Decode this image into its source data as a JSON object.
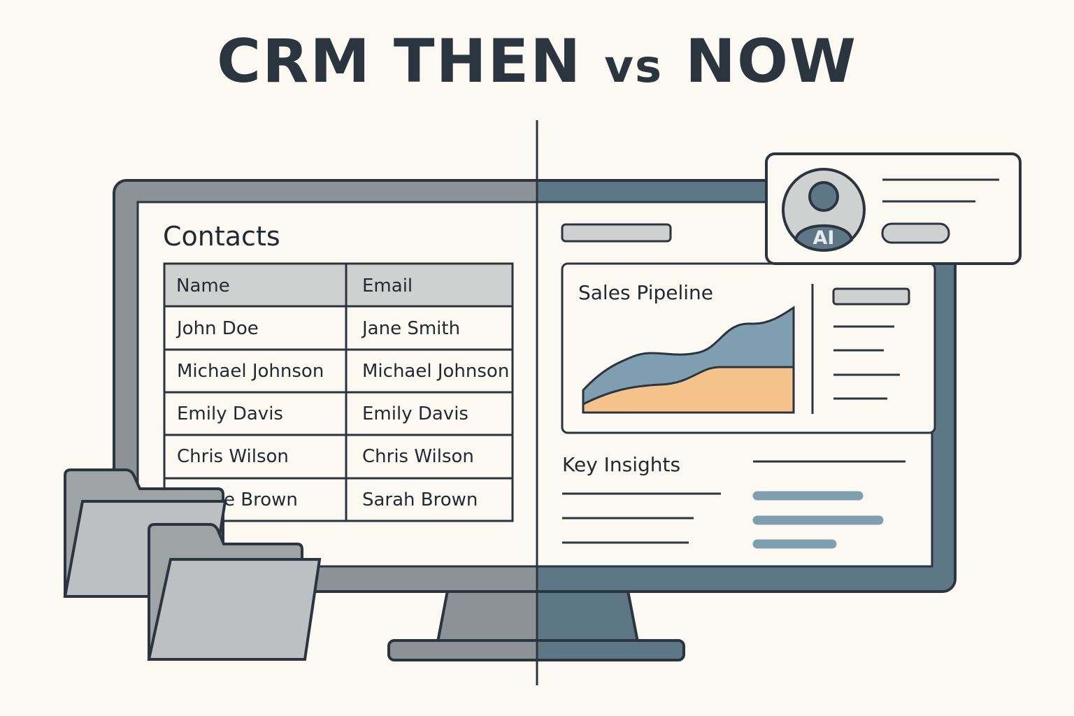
{
  "title": {
    "left": "CRM THEN",
    "vs": "vs",
    "right": "NOW"
  },
  "then": {
    "heading": "Contacts",
    "columns": [
      "Name",
      "Email"
    ],
    "rows": [
      [
        "John Doe",
        "Jane Smith"
      ],
      [
        "Michael Johnson",
        "Michael Johnson"
      ],
      [
        "Emily Davis",
        "Emily Davis"
      ],
      [
        "Chris Wilson",
        "Chris Wilson"
      ],
      [
        "e Brown",
        "Sarah Brown"
      ]
    ]
  },
  "now": {
    "chart_heading": "Sales Pipeline",
    "insights_heading": "Key Insights",
    "ai_label": "AI"
  },
  "colors": {
    "background": "#fcf8f2",
    "then_frame": "#8c9296",
    "now_frame": "#5e7787",
    "area_top": "#7f9fb1",
    "area_bottom": "#f6c28c",
    "outline": "#2a3540"
  }
}
